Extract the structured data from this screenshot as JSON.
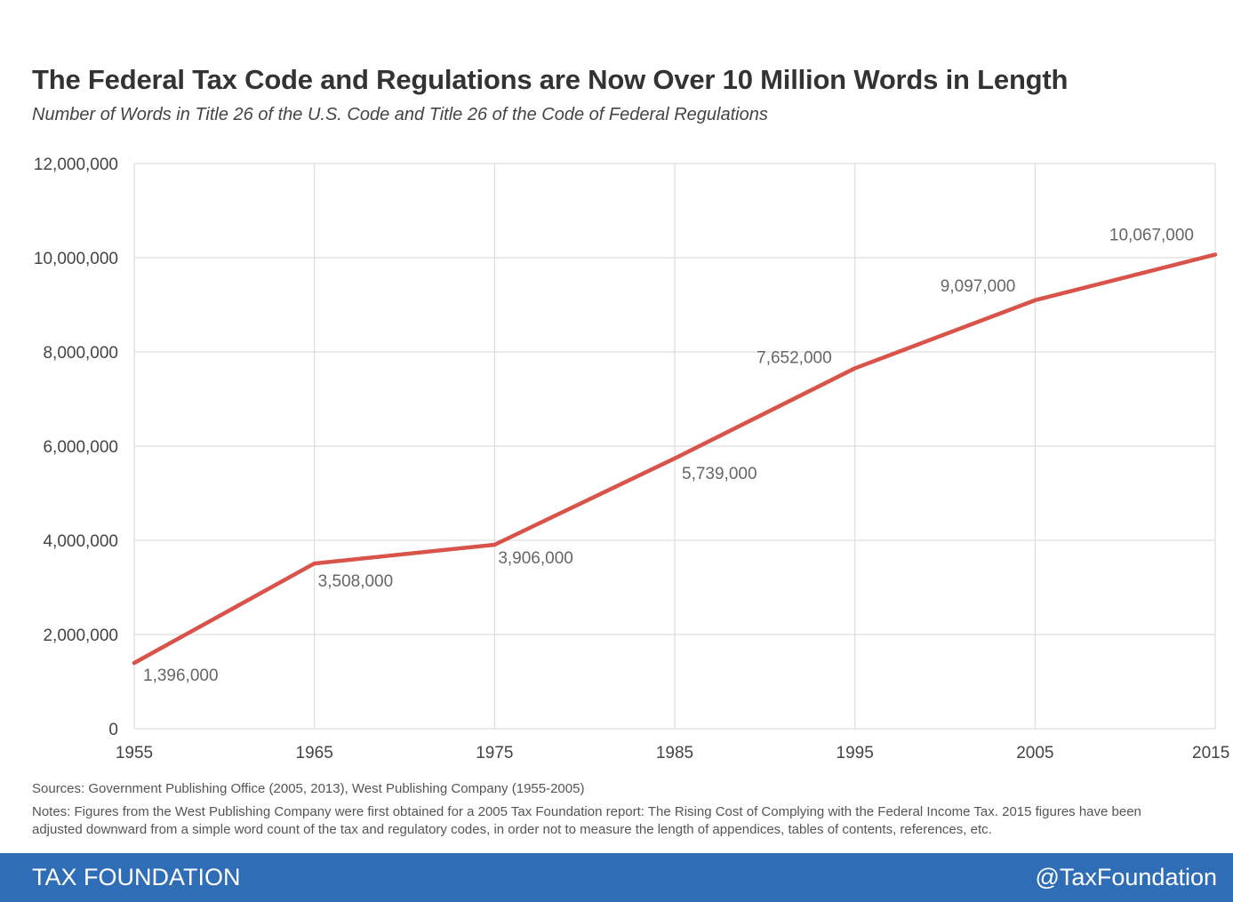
{
  "header": {
    "title": "The Federal Tax Code and Regulations are Now Over 10 Million Words in Length",
    "subtitle": "Number of Words in Title 26 of the U.S. Code and Title 26 of the Code of Federal Regulations"
  },
  "chart_data": {
    "type": "line",
    "title": "The Federal Tax Code and Regulations are Now Over 10 Million Words in Length",
    "subtitle": "Number of Words in Title 26 of the U.S. Code and Title 26 of the Code of Federal Regulations",
    "xlabel": "",
    "ylabel": "",
    "x": [
      1955,
      1965,
      1975,
      1985,
      1995,
      2005,
      2015
    ],
    "series": [
      {
        "values": [
          1396000,
          3508000,
          3906000,
          5739000,
          7652000,
          9097000,
          10067000
        ],
        "labels": [
          "1,396,000",
          "3,508,000",
          "3,906,000",
          "5,739,000",
          "7,652,000",
          "9,097,000",
          "10,067,000"
        ],
        "color": "#d9534a"
      }
    ],
    "xlim": [
      1955,
      2015
    ],
    "ylim": [
      0,
      12000000
    ],
    "x_ticks": [
      "1955",
      "1965",
      "1975",
      "1985",
      "1995",
      "2005",
      "2015"
    ],
    "y_ticks": [
      "0",
      "2,000,000",
      "4,000,000",
      "6,000,000",
      "8,000,000",
      "10,000,000",
      "12,000,000"
    ],
    "grid": true,
    "legend": "none"
  },
  "footer": {
    "sources": "Sources: Government Publishing Office (2005, 2013), West Publishing Company (1955-2005)",
    "notes": "Notes: Figures from the West Publishing Company were first obtained for a 2005 Tax Foundation report: The Rising Cost of Complying with the Federal Income Tax. 2015 figures have been adjusted downward from a simple word count of the tax and regulatory codes, in order not to measure the length of appendices, tables of contents, references, etc.",
    "brand": "TAX FOUNDATION",
    "handle": "@TaxFoundation"
  },
  "colors": {
    "line": "#d9534a",
    "footer_bar": "#2f6eb6",
    "grid": "#dddddd",
    "label": "#666666"
  }
}
